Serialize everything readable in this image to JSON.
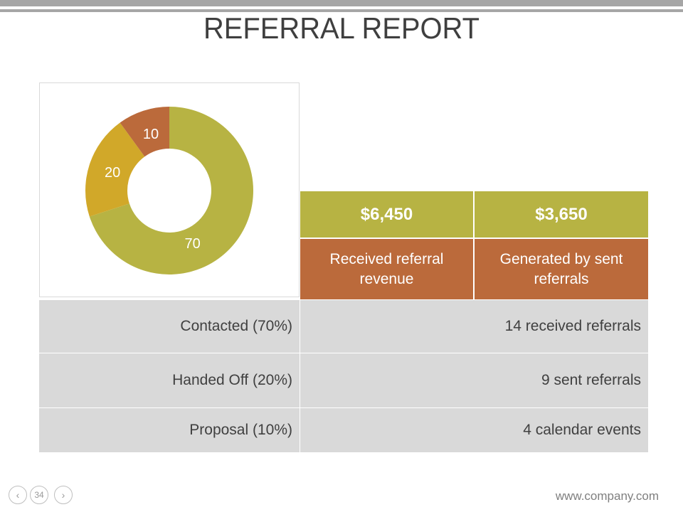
{
  "title": "REFERRAL REPORT",
  "chart_data": {
    "type": "donut",
    "values": [
      70,
      20,
      10
    ],
    "labels": [
      "70",
      "20",
      "10"
    ],
    "colors": [
      "#b7b343",
      "#d1a829",
      "#bb6a3b"
    ]
  },
  "table": {
    "header": [
      "$6,450",
      "$3,650"
    ],
    "subheader": [
      "Received referral revenue",
      "Generated by sent referrals"
    ],
    "rows": [
      {
        "label": "Contacted (70%)",
        "value": "14 received referrals"
      },
      {
        "label": "Handed Off (20%)",
        "value": "9 sent referrals"
      },
      {
        "label": "Proposal (10%)",
        "value": "4 calendar events"
      }
    ]
  },
  "footer": {
    "page": "34",
    "url": "www.company.com",
    "prev_icon": "chevron-left",
    "next_icon": "chevron-right"
  }
}
